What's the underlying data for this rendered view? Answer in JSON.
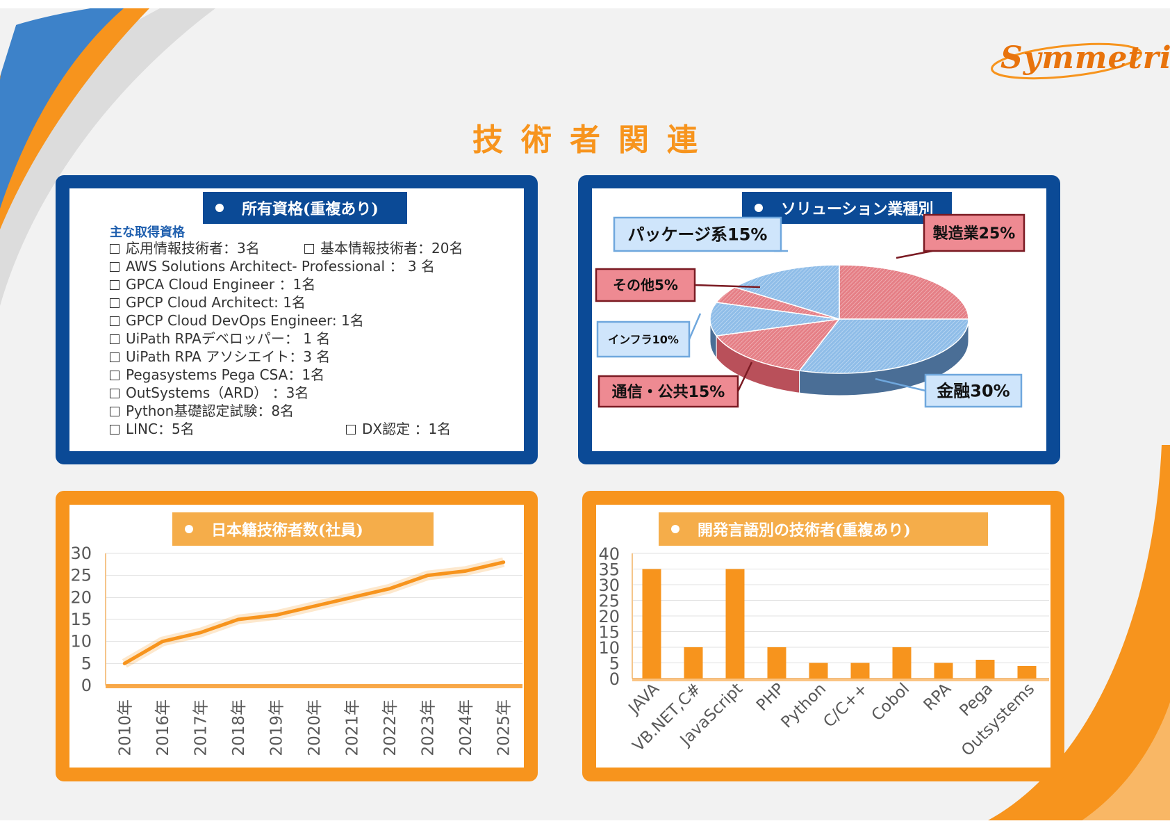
{
  "brand": {
    "logo_text": "Symmetrix",
    "accent": "#f7941d",
    "navy": "#0b4a96"
  },
  "page_title": "技術者関連",
  "qualifications": {
    "title": "所有資格(重複あり)",
    "subtitle": "主な取得資格",
    "rows": [
      [
        "応用情報技術者：3名",
        "基本情報技術者：20名"
      ],
      [
        "AWS Solutions Architect- Professional ： 3 名"
      ],
      [
        "GPCA Cloud Engineer ：1名"
      ],
      [
        "GPCP Cloud Architect: 1名"
      ],
      [
        "GPCP Cloud DevOps Engineer: 1名"
      ],
      [
        "UiPath RPAデベロッパー： 1 名"
      ],
      [
        "UiPath RPA アソシエイト：3 名"
      ],
      [
        "Pegasystems Pega CSA：1名"
      ],
      [
        "OutSystems（ARD） ：3名"
      ],
      [
        "Python基礎認定試験：8名"
      ],
      [
        "LINC：5名",
        "DX認定 ：1名"
      ]
    ]
  },
  "chart_data": [
    {
      "type": "pie",
      "title": "ソリューション業種別",
      "slices": [
        {
          "label": "製造業25%",
          "value": 25,
          "color": "#e57f86"
        },
        {
          "label": "金融30%",
          "value": 30,
          "color": "#8fbde8"
        },
        {
          "label": "通信・公共15%",
          "value": 15,
          "color": "#e57f86"
        },
        {
          "label": "インフラ10%",
          "value": 10,
          "color": "#8fbde8"
        },
        {
          "label": "その他5%",
          "value": 5,
          "color": "#e57f86"
        },
        {
          "label": "パッケージ系15%",
          "value": 15,
          "color": "#8fbde8"
        }
      ]
    },
    {
      "type": "line",
      "title": "日本籍技術者数(社員)",
      "x": [
        "2010年",
        "2016年",
        "2017年",
        "2018年",
        "2019年",
        "2020年",
        "2021年",
        "2022年",
        "2023年",
        "2024年",
        "2025年"
      ],
      "series": [
        {
          "values": [
            5,
            10,
            12,
            15,
            16,
            18,
            20,
            22,
            25,
            26,
            28
          ]
        }
      ],
      "yticks": [
        "0",
        "5",
        "10",
        "15",
        "20",
        "25",
        "30"
      ],
      "ylim": [
        0,
        30
      ],
      "color": "#f7941d",
      "grid": true
    },
    {
      "type": "bar",
      "title": "開発言語別の技術者(重複あり)",
      "categories": [
        "JAVA",
        "VB.NET,C#",
        "JavaScript",
        "PHP",
        "Python",
        "C/C++",
        "Cobol",
        "RPA",
        "Pega",
        "Outsystems"
      ],
      "values": [
        35,
        10,
        35,
        10,
        5,
        5,
        10,
        5,
        6,
        4
      ],
      "yticks": [
        "0",
        "5",
        "10",
        "15",
        "20",
        "25",
        "30",
        "35",
        "40"
      ],
      "ylim": [
        0,
        40
      ],
      "color": "#f7941d",
      "grid": true
    }
  ]
}
